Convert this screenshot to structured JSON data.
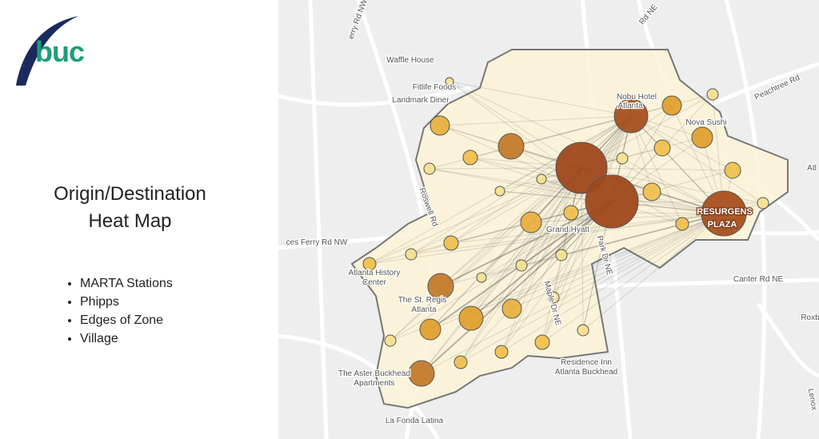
{
  "logo": "buc",
  "title": [
    "Origin/Destination",
    "Heat Map"
  ],
  "bullets": [
    "MARTA Stations",
    "Phipps",
    "Edges of Zone",
    "Village"
  ],
  "map_labels": [
    "Waffle House",
    "Fitlife Foods",
    "Landmark Diner",
    "Nobu Hotel",
    "Atlanta",
    "Nova Sushi",
    "Peachtree Rd",
    "Grand Hyatt",
    "RESURGENS",
    "PLAZA",
    "Roswell Rd",
    "ces Ferry Rd NW",
    "Atlanta History",
    "Center",
    "The St. Regis",
    "Atlanta",
    "Maple Dr NE",
    "Park Dr NE",
    "Canter Rd NE",
    "Residence Inn",
    "Atlanta Buckhead",
    "The Aster Buckhead",
    "Apartments",
    "La Fonda Latina",
    "erry Rd NW",
    "Rd NE",
    "Roxb",
    "Lenox",
    "Atl"
  ]
}
